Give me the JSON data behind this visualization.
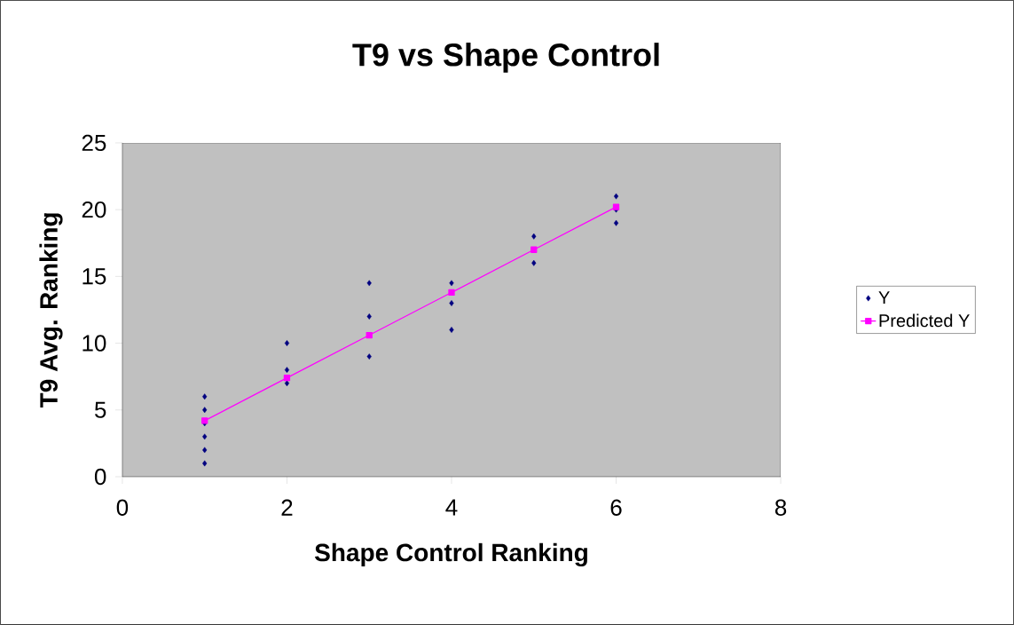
{
  "chart_data": {
    "type": "scatter",
    "title": "T9 vs Shape Control",
    "xlabel": "Shape Control Ranking",
    "ylabel": "T9 Avg. Ranking",
    "xlim": [
      0,
      8
    ],
    "xticks": [
      0,
      2,
      4,
      6,
      8
    ],
    "ylim": [
      0,
      25
    ],
    "yticks": [
      0,
      5,
      10,
      15,
      20,
      25
    ],
    "grid": false,
    "legend": "right",
    "series": [
      {
        "name": "Y",
        "marker": "diamond",
        "color": "#000080",
        "x": [
          1,
          1,
          1,
          1,
          1,
          1,
          2,
          2,
          2,
          3,
          3,
          3,
          4,
          4,
          4,
          5,
          5,
          6,
          6,
          6
        ],
        "values": [
          6,
          5,
          4,
          3,
          2,
          1,
          10,
          8,
          7,
          14.5,
          12,
          9,
          14.5,
          13,
          11,
          18,
          16,
          21,
          20,
          19
        ]
      },
      {
        "name": "Predicted Y",
        "type": "line",
        "marker": "square",
        "color": "#ff00ff",
        "x": [
          1,
          2,
          3,
          4,
          5,
          6
        ],
        "values": [
          4.2,
          7.4,
          10.6,
          13.8,
          17.0,
          20.2
        ]
      }
    ]
  }
}
